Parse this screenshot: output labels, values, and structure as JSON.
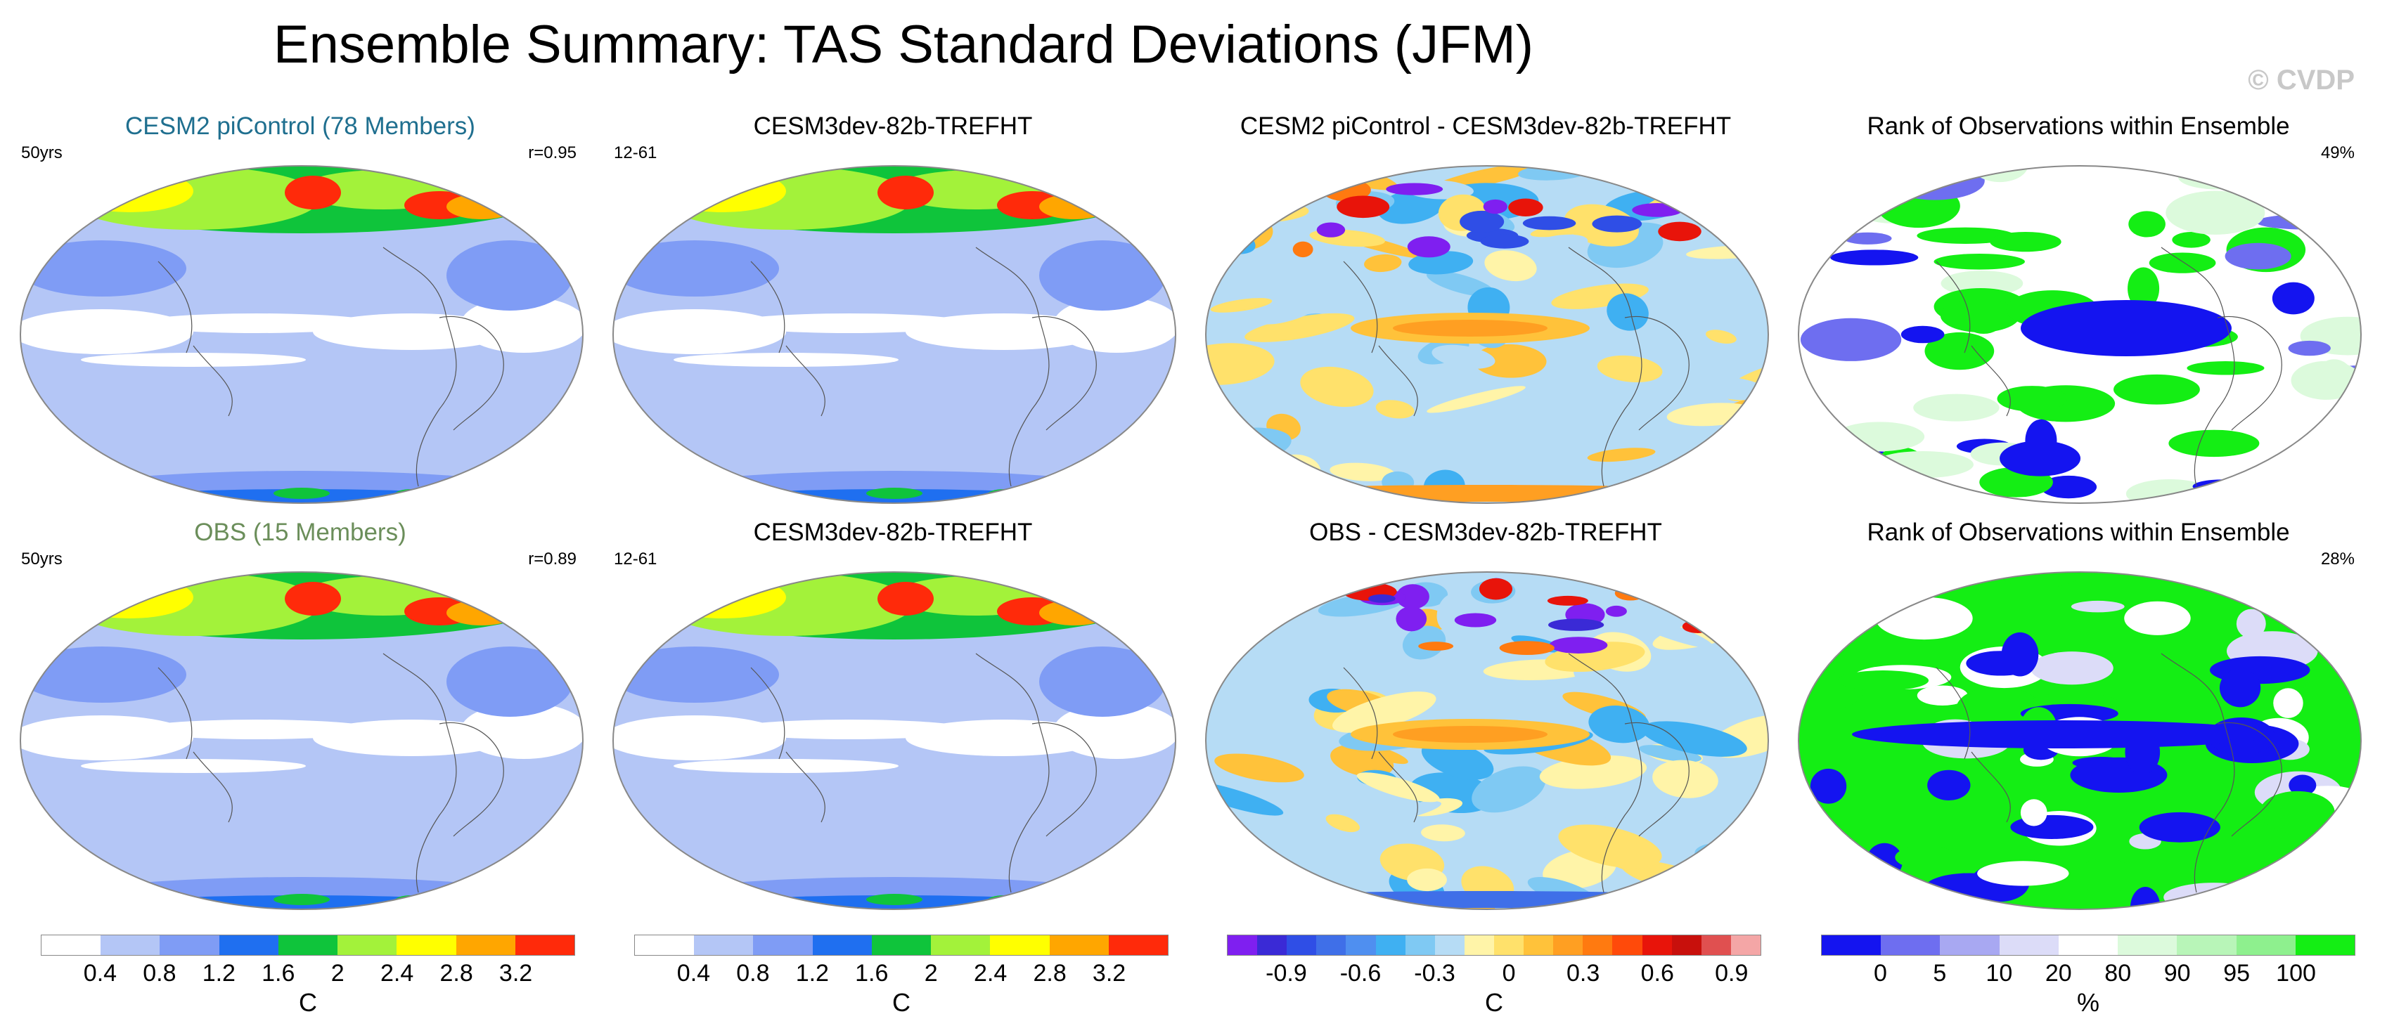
{
  "title": "Ensemble Summary: TAS Standard Deviations (JFM)",
  "watermark": "© CVDP",
  "panels": [
    {
      "title": "CESM2 piControl (78 Members)",
      "title_color": "#1f6f8f",
      "left_label": "50yrs",
      "right_label": "r=0.95",
      "scheme": "std"
    },
    {
      "title": "CESM3dev-82b-TREFHT",
      "title_color": "#000000",
      "left_label": "12-61",
      "right_label": "",
      "scheme": "std2"
    },
    {
      "title": "CESM2 piControl - CESM3dev-82b-TREFHT",
      "title_color": "#000000",
      "left_label": "",
      "right_label": "",
      "scheme": "diff"
    },
    {
      "title": "Rank of Observations within Ensemble",
      "title_color": "#000000",
      "left_label": "",
      "right_label": "49%",
      "scheme": "rank"
    },
    {
      "title": "OBS (15 Members)",
      "title_color": "#6b8e5a",
      "left_label": "50yrs",
      "right_label": "r=0.89",
      "scheme": "std"
    },
    {
      "title": "CESM3dev-82b-TREFHT",
      "title_color": "#000000",
      "left_label": "12-61",
      "right_label": "",
      "scheme": "std2"
    },
    {
      "title": "OBS - CESM3dev-82b-TREFHT",
      "title_color": "#000000",
      "left_label": "",
      "right_label": "",
      "scheme": "diff2"
    },
    {
      "title": "Rank of Observations within Ensemble",
      "title_color": "#000000",
      "left_label": "",
      "right_label": "28%",
      "scheme": "rank2"
    }
  ],
  "colorbars": [
    {
      "unit": "C",
      "colors": [
        "#ffffff",
        "#b4c6f6",
        "#7f9cf5",
        "#1f6ff0",
        "#0fc43b",
        "#a3f23a",
        "#ffff00",
        "#ffa600",
        "#ff2a0a"
      ],
      "ticks": [
        "0.4",
        "0.8",
        "1.2",
        "1.6",
        "2",
        "2.4",
        "2.8",
        "3.2"
      ]
    },
    {
      "unit": "C",
      "colors": [
        "#ffffff",
        "#b4c6f6",
        "#7f9cf5",
        "#1f6ff0",
        "#0fc43b",
        "#a3f23a",
        "#ffff00",
        "#ffa600",
        "#ff2a0a"
      ],
      "ticks": [
        "0.4",
        "0.8",
        "1.2",
        "1.6",
        "2",
        "2.4",
        "2.8",
        "3.2"
      ]
    },
    {
      "unit": "C",
      "colors": [
        "#7f1ff0",
        "#3a2ad6",
        "#2f4ee6",
        "#3f6fe8",
        "#4f8ff0",
        "#3fb0f2",
        "#7fc9f3",
        "#b6dcf5",
        "#fff4a8",
        "#ffe16b",
        "#ffc23a",
        "#ff9f22",
        "#ff7a10",
        "#ff4a0a",
        "#e8140a",
        "#c8100c",
        "#e05050",
        "#f4a6a6"
      ],
      "ticks": [
        "-0.9",
        "-0.6",
        "-0.3",
        "0",
        "0.3",
        "0.6",
        "0.9"
      ]
    },
    {
      "unit": "%",
      "colors": [
        "#1414f0",
        "#6e6ef0",
        "#a8a8f2",
        "#dcdcf8",
        "#ffffff",
        "#dcfadc",
        "#b8f5b8",
        "#8ef08e",
        "#14ee14"
      ],
      "ticks": [
        "0",
        "5",
        "10",
        "20",
        "80",
        "90",
        "95",
        "100"
      ]
    }
  ]
}
